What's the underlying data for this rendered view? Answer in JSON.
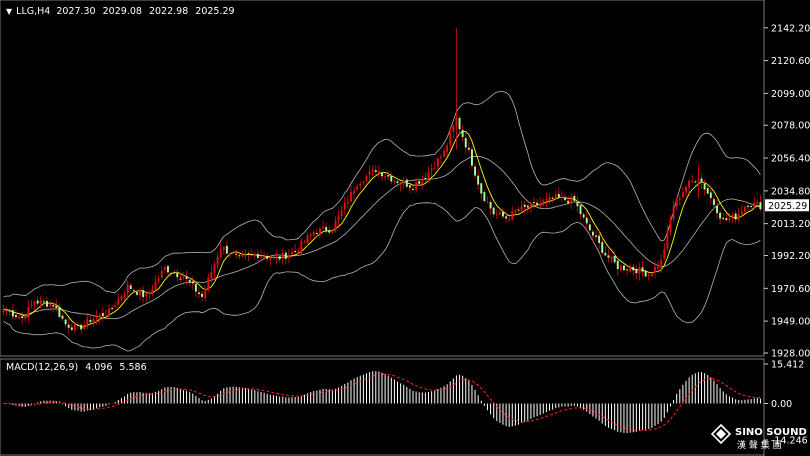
{
  "header": {
    "symbol_tf": "LLG,H4",
    "ohlc": [
      "2027.30",
      "2029.08",
      "2022.98",
      "2025.29"
    ]
  },
  "price_axis": {
    "ticks": [
      "2142.20",
      "2120.60",
      "2099.00",
      "2078.00",
      "2056.40",
      "2034.80",
      "2013.20",
      "1992.20",
      "1970.60",
      "1949.00",
      "1928.00"
    ],
    "current_price": "2025.29"
  },
  "macd": {
    "title": "MACD(12,26,9)",
    "main_value": "4.096",
    "signal_value": "5.586",
    "ticks": [
      "15.412",
      "0.00",
      "-14.246"
    ]
  },
  "logo": {
    "brand": "SINO SOUND",
    "chinese": "漢 聲 集 團"
  },
  "colors": {
    "background": "#000000",
    "bull_candle": "#e01010",
    "bear_candle": "#a8ffa0",
    "wick": "#e01010",
    "ma_line": "#ffff00",
    "bands": "#b4b4b4",
    "macd_hist": "#ffffff",
    "macd_signal": "#ff2020",
    "axis_text": "#ffffff",
    "price_tag_bg": "#ffffff",
    "price_tag_text": "#000000"
  },
  "chart_data": {
    "type": "candlestick",
    "ylim": [
      1928,
      2146
    ],
    "macd_ylim": [
      -14.246,
      15.412
    ],
    "keys": [
      {
        "x": 0,
        "c": 1957
      },
      {
        "x": 6,
        "c": 1951
      },
      {
        "x": 10,
        "c": 1962
      },
      {
        "x": 16,
        "c": 1960
      },
      {
        "x": 20,
        "c": 1947
      },
      {
        "x": 24,
        "c": 1944
      },
      {
        "x": 28,
        "c": 1950
      },
      {
        "x": 34,
        "c": 1955
      },
      {
        "x": 40,
        "c": 1972
      },
      {
        "x": 46,
        "c": 1965
      },
      {
        "x": 52,
        "c": 1984
      },
      {
        "x": 58,
        "c": 1978
      },
      {
        "x": 64,
        "c": 1965
      },
      {
        "x": 70,
        "c": 1998
      },
      {
        "x": 76,
        "c": 1990
      },
      {
        "x": 82,
        "c": 1993
      },
      {
        "x": 88,
        "c": 1990
      },
      {
        "x": 94,
        "c": 1995
      },
      {
        "x": 100,
        "c": 2008
      },
      {
        "x": 106,
        "c": 2010
      },
      {
        "x": 114,
        "c": 2040
      },
      {
        "x": 120,
        "c": 2049
      },
      {
        "x": 126,
        "c": 2042
      },
      {
        "x": 132,
        "c": 2038
      },
      {
        "x": 136,
        "c": 2045
      },
      {
        "x": 142,
        "c": 2060
      },
      {
        "x": 146,
        "c": 2082
      },
      {
        "x": 150,
        "c": 2060
      },
      {
        "x": 154,
        "c": 2034
      },
      {
        "x": 158,
        "c": 2020
      },
      {
        "x": 162,
        "c": 2017
      },
      {
        "x": 166,
        "c": 2022
      },
      {
        "x": 172,
        "c": 2026
      },
      {
        "x": 178,
        "c": 2030
      },
      {
        "x": 184,
        "c": 2028
      },
      {
        "x": 188,
        "c": 2012
      },
      {
        "x": 194,
        "c": 1993
      },
      {
        "x": 198,
        "c": 1985
      },
      {
        "x": 204,
        "c": 1983
      },
      {
        "x": 208,
        "c": 1980
      },
      {
        "x": 212,
        "c": 1988
      },
      {
        "x": 216,
        "c": 2025
      },
      {
        "x": 220,
        "c": 2038
      },
      {
        "x": 224,
        "c": 2044
      },
      {
        "x": 228,
        "c": 2030
      },
      {
        "x": 232,
        "c": 2015
      },
      {
        "x": 236,
        "c": 2018
      },
      {
        "x": 240,
        "c": 2027
      },
      {
        "x": 244,
        "c": 2025
      }
    ],
    "spikes": [
      {
        "x": 146,
        "h": 2142.2,
        "l": 2062
      },
      {
        "x": 224,
        "h": 2052,
        "l": 2030
      }
    ]
  }
}
